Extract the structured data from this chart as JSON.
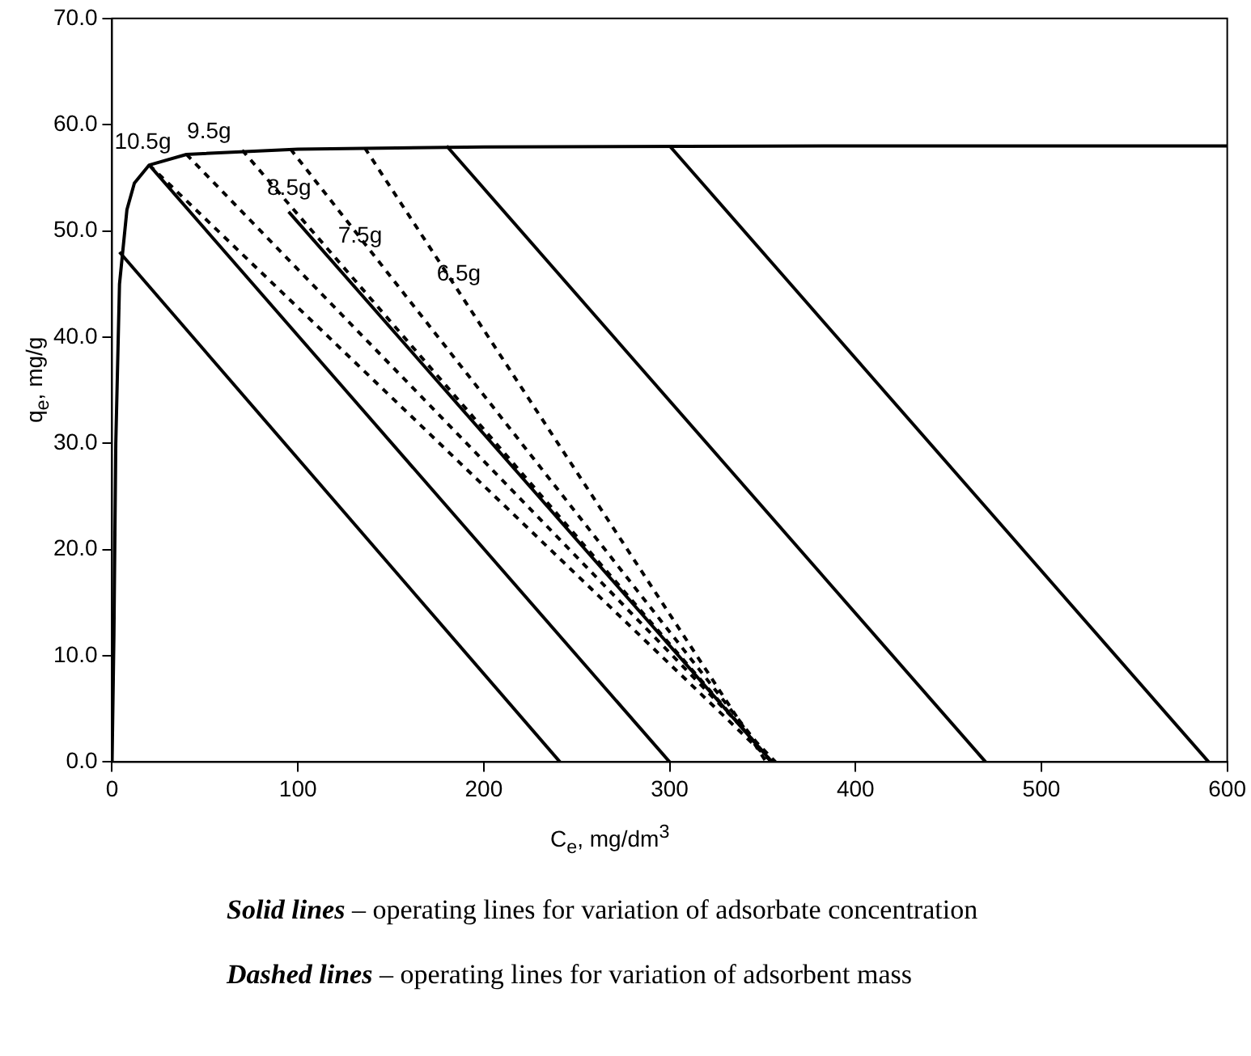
{
  "chart_data": {
    "type": "line",
    "xlabel": "C$_{e}$, mg/dm$^{3}$",
    "ylabel": "q$_{e}$, mg/g",
    "xlim": [
      0,
      600
    ],
    "xticks": [
      0,
      100,
      200,
      300,
      400,
      500,
      600
    ],
    "ylim": [
      0,
      70
    ],
    "yticks": [
      {
        "value": 0,
        "label": "0.0"
      },
      {
        "value": 10,
        "label": "10.0"
      },
      {
        "value": 20,
        "label": "20.0"
      },
      {
        "value": 30,
        "label": "30.0"
      },
      {
        "value": 40,
        "label": "40.0"
      },
      {
        "value": 50,
        "label": "50.0"
      },
      {
        "value": 60,
        "label": "60.0"
      },
      {
        "value": 70,
        "label": "70.0"
      }
    ],
    "legend": false,
    "marker": "none",
    "series": [
      {
        "color": "#000000",
        "line_style": "solid",
        "x": [
          0,
          1,
          2,
          4,
          8,
          12,
          20,
          40,
          100,
          200,
          400,
          600
        ],
        "values": [
          0,
          12,
          30,
          45,
          52,
          54.5,
          56.2,
          57.2,
          57.7,
          57.9,
          58,
          58
        ]
      },
      {
        "color": "#000000",
        "line_style": "solid",
        "x": [
          4,
          241
        ],
        "values": [
          48,
          0
        ]
      },
      {
        "color": "#000000",
        "line_style": "solid",
        "x": [
          20,
          300
        ],
        "values": [
          56.2,
          0
        ]
      },
      {
        "color": "#000000",
        "line_style": "solid",
        "x": [
          95,
          355
        ],
        "values": [
          51.8,
          0
        ]
      },
      {
        "color": "#000000",
        "line_style": "solid",
        "x": [
          180,
          470
        ],
        "values": [
          58,
          0
        ]
      },
      {
        "color": "#000000",
        "line_style": "solid",
        "x": [
          300,
          590
        ],
        "values": [
          58,
          0
        ]
      },
      {
        "name": "10.5g",
        "color": "#000000",
        "line_style": "dashed",
        "x": [
          20,
          355
        ],
        "values": [
          56.2,
          0
        ]
      },
      {
        "name": "9.5g",
        "color": "#000000",
        "line_style": "dashed",
        "x": [
          40,
          357
        ],
        "values": [
          57.2,
          0
        ]
      },
      {
        "name": "8.5g",
        "color": "#000000",
        "line_style": "dashed",
        "x": [
          70,
          355
        ],
        "values": [
          57.6,
          0
        ]
      },
      {
        "name": "7.5g",
        "color": "#000000",
        "line_style": "dashed",
        "x": [
          96,
          355
        ],
        "values": [
          57.7,
          0
        ]
      },
      {
        "name": "6.5g",
        "color": "#000000",
        "line_style": "dashed",
        "x": [
          136,
          352
        ],
        "values": [
          57.8,
          0
        ]
      }
    ],
    "annotations": [
      "Solid lines – operating lines for variation of adsorbate concentration",
      "Dashed lines – operating lines for variation of adsorbent mass"
    ]
  }
}
